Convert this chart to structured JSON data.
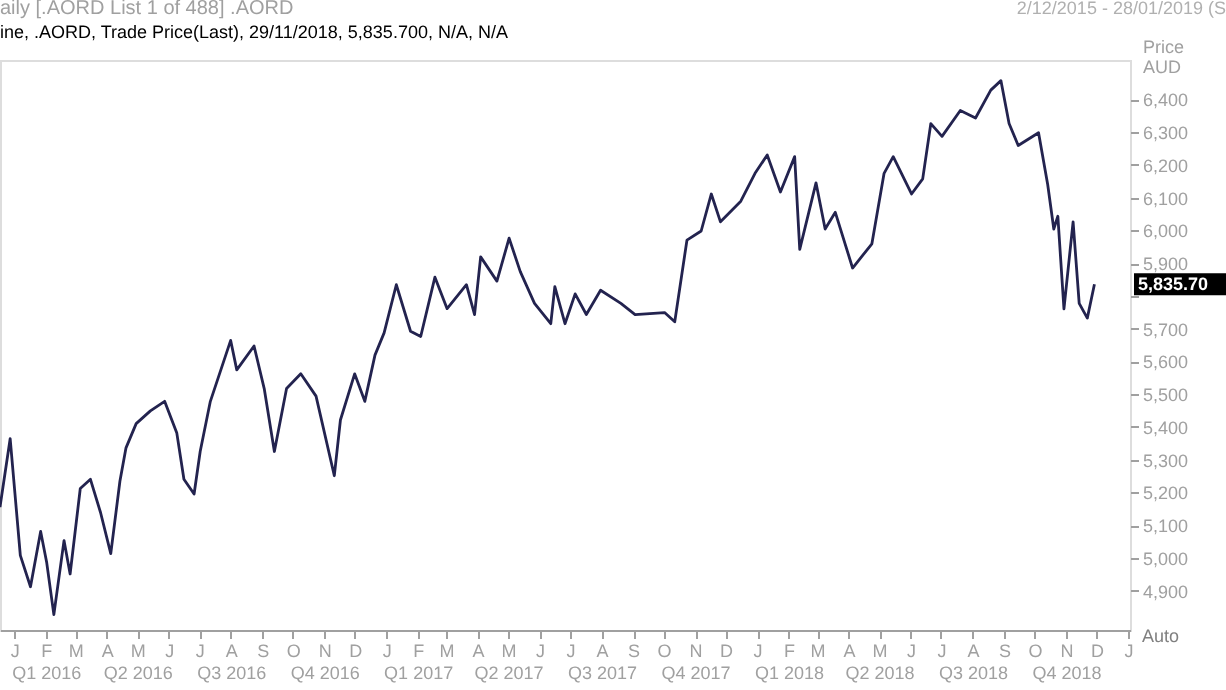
{
  "chart_data": {
    "type": "line",
    "title": "aily [.AORD List 1 of 488] .AORD",
    "subtitle": "ine, .AORD, Trade Price(Last),  29/11/2018, 5,835.700, N/A, N/A",
    "ylabel": "Price AUD",
    "x": [
      "2015-12-18",
      "2015-12-28",
      "2016-01-07",
      "2016-01-17",
      "2016-01-27",
      "2016-02-02",
      "2016-02-09",
      "2016-02-19",
      "2016-02-25",
      "2016-03-06",
      "2016-03-16",
      "2016-03-26",
      "2016-04-05",
      "2016-04-14",
      "2016-04-20",
      "2016-04-30",
      "2016-05-14",
      "2016-05-28",
      "2016-06-09",
      "2016-06-16",
      "2016-06-26",
      "2016-07-02",
      "2016-07-12",
      "2016-08-01",
      "2016-08-07",
      "2016-08-24",
      "2016-09-03",
      "2016-09-13",
      "2016-09-25",
      "2016-10-09",
      "2016-10-24",
      "2016-11-11",
      "2016-11-17",
      "2016-12-01",
      "2016-12-11",
      "2016-12-21",
      "2016-12-30",
      "2017-01-11",
      "2017-01-25",
      "2017-02-04",
      "2017-02-18",
      "2017-03-02",
      "2017-03-21",
      "2017-03-29",
      "2017-04-04",
      "2017-04-20",
      "2017-05-02",
      "2017-05-13",
      "2017-05-27",
      "2017-06-12",
      "2017-06-16",
      "2017-06-26",
      "2017-07-06",
      "2017-07-17",
      "2017-07-31",
      "2017-08-20",
      "2017-09-03",
      "2017-10-02",
      "2017-10-12",
      "2017-10-24",
      "2017-11-07",
      "2017-11-17",
      "2017-11-26",
      "2017-12-16",
      "2017-12-30",
      "2018-01-11",
      "2018-01-24",
      "2018-02-07",
      "2018-02-12",
      "2018-02-28",
      "2018-03-09",
      "2018-03-19",
      "2018-04-05",
      "2018-04-24",
      "2018-05-06",
      "2018-05-15",
      "2018-06-02",
      "2018-06-13",
      "2018-06-21",
      "2018-07-02",
      "2018-07-20",
      "2018-08-04",
      "2018-08-19",
      "2018-08-29",
      "2018-09-06",
      "2018-09-15",
      "2018-10-05",
      "2018-10-14",
      "2018-10-20",
      "2018-10-24",
      "2018-10-30",
      "2018-11-08",
      "2018-11-14",
      "2018-11-22",
      "2018-11-29"
    ],
    "series": [
      {
        "color": "#23234f",
        "values": [
          5155,
          5364,
          5008,
          4912,
          5081,
          4985,
          4827,
          5053,
          4951,
          5212,
          5240,
          5138,
          5013,
          5234,
          5336,
          5410,
          5449,
          5478,
          5381,
          5240,
          5195,
          5325,
          5478,
          5664,
          5574,
          5647,
          5517,
          5325,
          5517,
          5562,
          5494,
          5251,
          5421,
          5562,
          5478,
          5619,
          5687,
          5834,
          5692,
          5676,
          5857,
          5761,
          5834,
          5743,
          5919,
          5845,
          5976,
          5874,
          5777,
          5715,
          5828,
          5715,
          5806,
          5743,
          5817,
          5777,
          5743,
          5749,
          5721,
          5970,
          5998,
          6111,
          6026,
          6089,
          6174,
          6230,
          6117,
          6225,
          5942,
          6145,
          6004,
          6055,
          5885,
          5959,
          6174,
          6225,
          6111,
          6157,
          6326,
          6287,
          6366,
          6343,
          6428,
          6457,
          6326,
          6259,
          6298,
          6140,
          6004,
          6043,
          5760,
          6026,
          5777,
          5732,
          5835.7
        ]
      }
    ],
    "xlim": [
      "2015-12-18",
      "2019-01-03"
    ],
    "xticks": [
      {
        "value": "2016-01-01",
        "label": "J"
      },
      {
        "value": "2016-02-01",
        "label": "F\nQ1 2016"
      },
      {
        "value": "2016-03-01",
        "label": "M"
      },
      {
        "value": "2016-04-01",
        "label": "A"
      },
      {
        "value": "2016-05-01",
        "label": "M\nQ2 2016"
      },
      {
        "value": "2016-06-01",
        "label": "J"
      },
      {
        "value": "2016-07-01",
        "label": "J"
      },
      {
        "value": "2016-08-01",
        "label": "A\nQ3 2016"
      },
      {
        "value": "2016-09-01",
        "label": "S"
      },
      {
        "value": "2016-10-01",
        "label": "O"
      },
      {
        "value": "2016-11-01",
        "label": "N\nQ4 2016"
      },
      {
        "value": "2016-12-01",
        "label": "D"
      },
      {
        "value": "2017-01-01",
        "label": "J"
      },
      {
        "value": "2017-02-01",
        "label": "F\nQ1 2017"
      },
      {
        "value": "2017-03-01",
        "label": "M"
      },
      {
        "value": "2017-04-01",
        "label": "A"
      },
      {
        "value": "2017-05-01",
        "label": "M\nQ2 2017"
      },
      {
        "value": "2017-06-01",
        "label": "J"
      },
      {
        "value": "2017-07-01",
        "label": "J"
      },
      {
        "value": "2017-08-01",
        "label": "A\nQ3 2017"
      },
      {
        "value": "2017-09-01",
        "label": "S"
      },
      {
        "value": "2017-10-01",
        "label": "O"
      },
      {
        "value": "2017-11-01",
        "label": "N\nQ4 2017"
      },
      {
        "value": "2017-12-01",
        "label": "D"
      },
      {
        "value": "2018-01-01",
        "label": "J"
      },
      {
        "value": "2018-02-01",
        "label": "F\nQ1 2018"
      },
      {
        "value": "2018-03-01",
        "label": "M"
      },
      {
        "value": "2018-04-01",
        "label": "A"
      },
      {
        "value": "2018-05-01",
        "label": "M\nQ2 2018"
      },
      {
        "value": "2018-06-01",
        "label": "J"
      },
      {
        "value": "2018-07-01",
        "label": "J"
      },
      {
        "value": "2018-08-01",
        "label": "A\nQ3 2018"
      },
      {
        "value": "2018-09-01",
        "label": "S"
      },
      {
        "value": "2018-10-01",
        "label": "O"
      },
      {
        "value": "2018-11-01",
        "label": "N\nQ4 2018"
      },
      {
        "value": "2018-12-01",
        "label": "D"
      },
      {
        "value": "2019-01-01",
        "label": "J"
      }
    ],
    "ylim": [
      4780,
      6520
    ],
    "yticks": [
      {
        "value": 4900,
        "label": "4,900"
      },
      {
        "value": 5000,
        "label": "5,000"
      },
      {
        "value": 5100,
        "label": "5,100"
      },
      {
        "value": 5200,
        "label": "5,200"
      },
      {
        "value": 5300,
        "label": "5,300"
      },
      {
        "value": 5400,
        "label": "5,400"
      },
      {
        "value": 5500,
        "label": "5,500"
      },
      {
        "value": 5600,
        "label": "5,600"
      },
      {
        "value": 5700,
        "label": "5,700"
      },
      {
        "value": 5800,
        "label": null
      },
      {
        "value": 5900,
        "label": "5,900"
      },
      {
        "value": 6000,
        "label": "6,000"
      },
      {
        "value": 6100,
        "label": "6,100"
      },
      {
        "value": 6200,
        "label": "6,200"
      },
      {
        "value": 6300,
        "label": "6,300"
      },
      {
        "value": 6400,
        "label": "6,400"
      }
    ],
    "annotations": [
      "2/12/2015 - 28/01/2019 (S",
      {
        "text": "5,835.70",
        "x": "2018-11-29",
        "y": 5835.7
      },
      "Auto"
    ],
    "grid": false,
    "legend": false,
    "marker": "none",
    "line_style": "solid"
  }
}
